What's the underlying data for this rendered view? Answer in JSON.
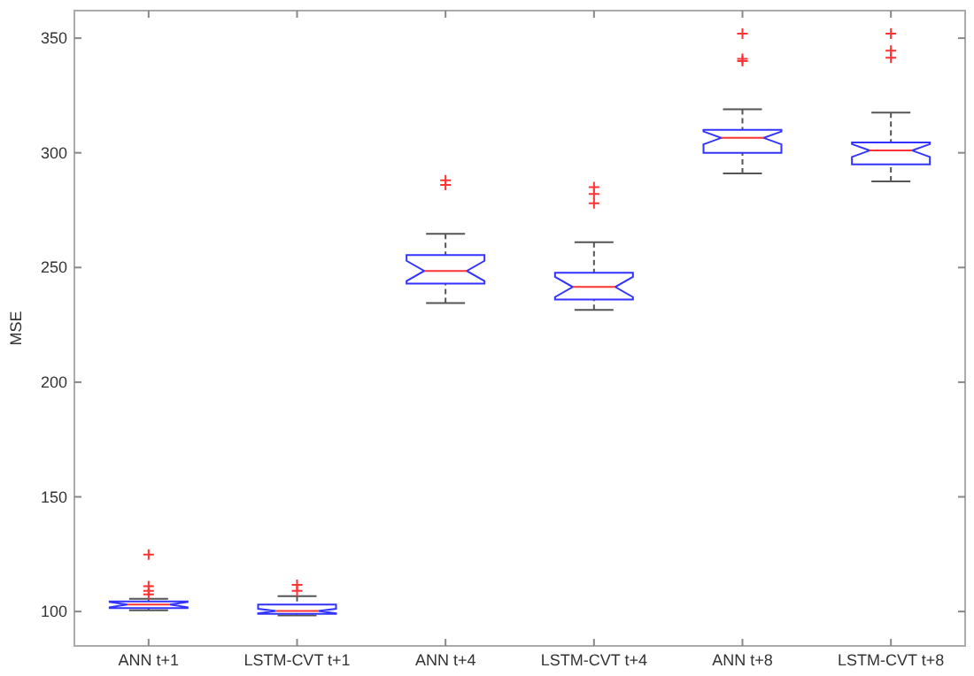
{
  "chart_data": {
    "type": "box",
    "ylabel": "MSE",
    "categories": [
      "ANN t+1",
      "LSTM-CVT t+1",
      "ANN t+4",
      "LSTM-CVT t+4",
      "ANN t+8",
      "LSTM-CVT t+8"
    ],
    "boxes": [
      {
        "low": 100.5,
        "q1": 101.5,
        "median": 103,
        "q3": 104.4,
        "high": 105.5,
        "outliers": [
          124.8,
          111,
          109,
          107.5
        ]
      },
      {
        "low": 98.3,
        "q1": 99,
        "median": 100.2,
        "q3": 103,
        "high": 106.7,
        "outliers": [
          111.6,
          109
        ]
      },
      {
        "low": 234.5,
        "q1": 243,
        "median": 248.5,
        "q3": 255.4,
        "high": 264.7,
        "outliers": [
          286,
          288
        ]
      },
      {
        "low": 231.5,
        "q1": 236,
        "median": 241.5,
        "q3": 247.7,
        "high": 261,
        "outliers": [
          278,
          282,
          285
        ]
      },
      {
        "low": 291,
        "q1": 300,
        "median": 306.5,
        "q3": 310,
        "high": 319,
        "outliers": [
          352,
          341,
          340
        ]
      },
      {
        "low": 287.5,
        "q1": 295,
        "median": 301,
        "q3": 304.5,
        "high": 317.5,
        "outliers": [
          352,
          344.5,
          341.5
        ]
      }
    ],
    "ylim": [
      85,
      362
    ],
    "yticks": [
      100,
      150,
      200,
      250,
      300,
      350
    ],
    "grid": false
  }
}
